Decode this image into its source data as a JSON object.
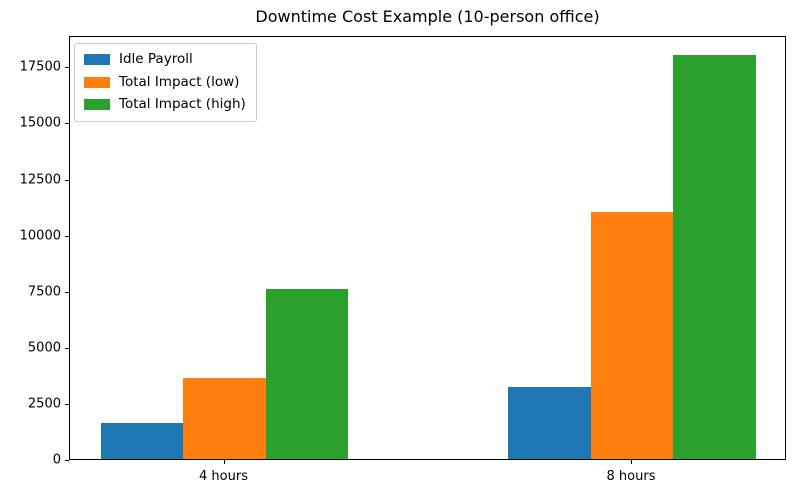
{
  "title": "Downtime Cost Example (10-person office)",
  "chart_data": {
    "type": "bar",
    "title": "Downtime Cost Example (10-person office)",
    "categories": [
      "4 hours",
      "8 hours"
    ],
    "series": [
      {
        "name": "Idle Payroll",
        "color": "#1f77b4",
        "values": [
          1600,
          3200
        ]
      },
      {
        "name": "Total Impact (low)",
        "color": "#ff7f0e",
        "values": [
          3600,
          11000
        ]
      },
      {
        "name": "Total Impact (high)",
        "color": "#2ca02c",
        "values": [
          7600,
          18000
        ]
      }
    ],
    "xlabel": "",
    "ylabel": "",
    "ylim": [
      0,
      18900
    ],
    "yticks": [
      0,
      2500,
      5000,
      7500,
      10000,
      12500,
      15000,
      17500
    ],
    "grid": false,
    "legend_position": "upper left",
    "background_color": "#ffffff",
    "spine_color": "#000000"
  }
}
